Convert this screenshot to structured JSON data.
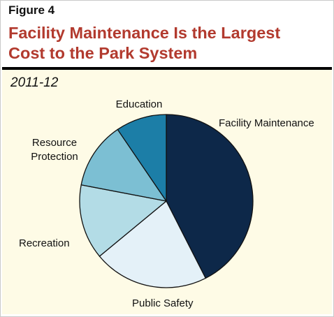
{
  "figure_label": "Figure 4",
  "title_line1": "Facility Maintenance Is the Largest",
  "title_line2": "Cost to the Park System",
  "subtitle": "2011-12",
  "colors": {
    "title": "#b23a2e",
    "background": "#fefbe6"
  },
  "chart_data": {
    "type": "pie",
    "title": "Facility Maintenance Is the Largest Cost to the Park System",
    "subtitle": "2011-12",
    "slices": [
      {
        "label": "Facility Maintenance",
        "value": 42.5,
        "color": "#0d2849"
      },
      {
        "label": "Public Safety",
        "value": 21.5,
        "color": "#e4f1f8"
      },
      {
        "label": "Recreation",
        "value": 14.0,
        "color": "#b3dce6"
      },
      {
        "label": "Resource Protection",
        "value": 12.5,
        "color": "#7cbfd3"
      },
      {
        "label": "Education",
        "value": 9.5,
        "color": "#1c7ea7"
      }
    ],
    "start_angle": "12 o'clock",
    "direction": "clockwise",
    "legend": "none (labels beside slices)"
  }
}
